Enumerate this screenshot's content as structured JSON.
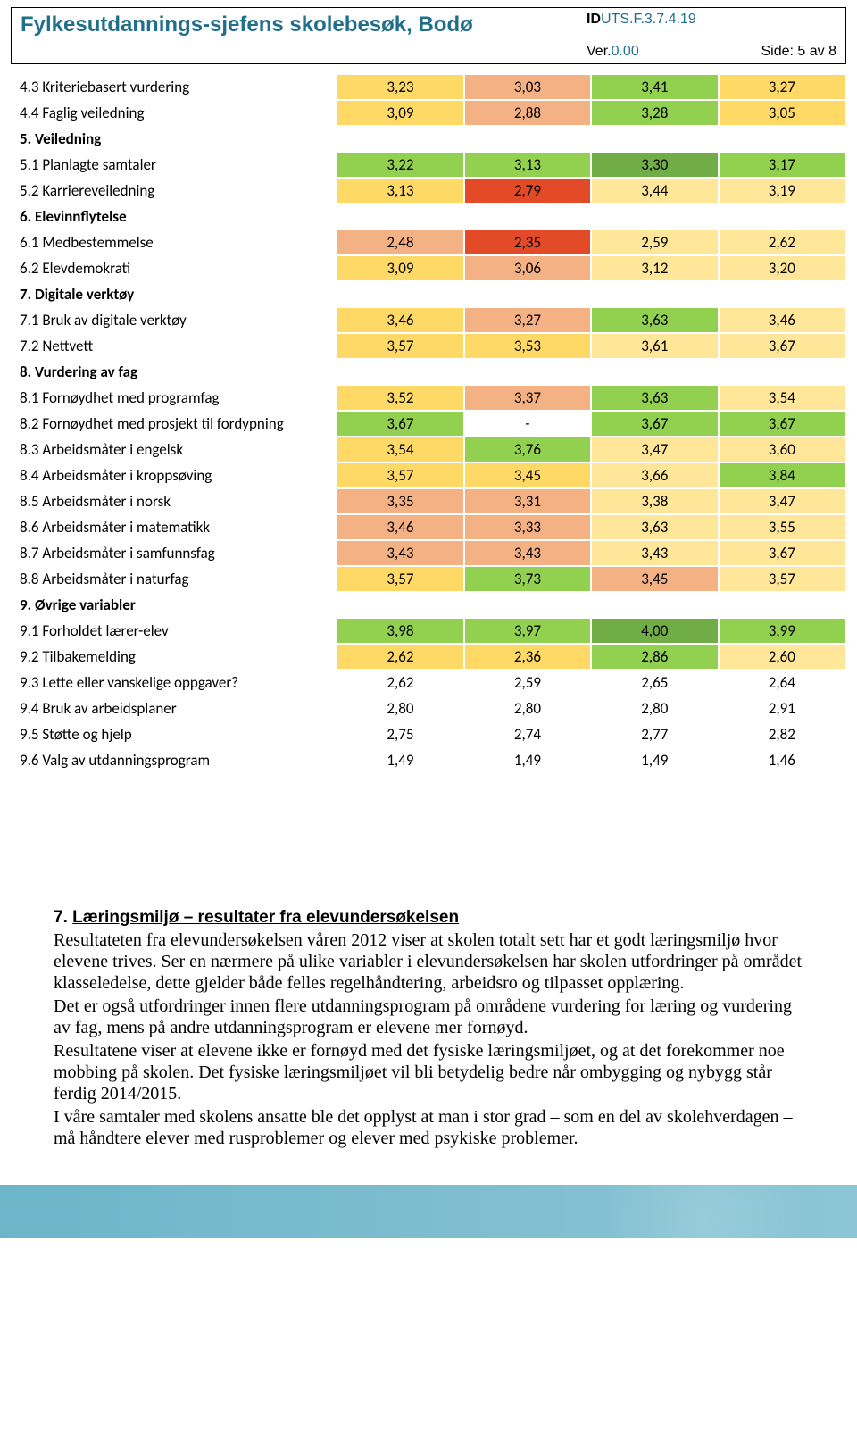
{
  "header": {
    "title": "Fylkesutdannings-sjefens skolebesøk, Bodø",
    "doc_id_prefix": "ID",
    "doc_id_rest": "UTS.F.3.7.4.19",
    "version_label": "Ver.",
    "version_value": "0.00",
    "page_label": "Side: 5 av 8"
  },
  "colors": {
    "green_dark": "#70ad47",
    "green_bright": "#92d050",
    "yellow": "#ffd966",
    "yellow_light": "#ffe699",
    "orange": "#f4b183",
    "orange_dark": "#ed7d31",
    "red": "#e34a27",
    "white": "#ffffff"
  },
  "rows": [
    {
      "label": "4.3 Kriteriebasert vurdering",
      "vals": [
        "3,23",
        "3,03",
        "3,41",
        "3,27"
      ],
      "c": [
        "yellow",
        "orange",
        "green_bright",
        "yellow"
      ]
    },
    {
      "label": "4.4 Faglig veiledning",
      "vals": [
        "3,09",
        "2,88",
        "3,28",
        "3,05"
      ],
      "c": [
        "yellow",
        "orange",
        "green_bright",
        "yellow"
      ]
    },
    {
      "label": "5. Veiledning",
      "section": true
    },
    {
      "label": "5.1 Planlagte samtaler",
      "vals": [
        "3,22",
        "3,13",
        "3,30",
        "3,17"
      ],
      "c": [
        "green_bright",
        "green_bright",
        "green_dark",
        "green_bright"
      ]
    },
    {
      "label": "5.2 Karriereveiledning",
      "vals": [
        "3,13",
        "2,79",
        "3,44",
        "3,19"
      ],
      "c": [
        "yellow",
        "red",
        "yellow_light",
        "yellow_light"
      ]
    },
    {
      "label": "6. Elevinnflytelse",
      "section": true
    },
    {
      "label": "6.1 Medbestemmelse",
      "vals": [
        "2,48",
        "2,35",
        "2,59",
        "2,62"
      ],
      "c": [
        "orange",
        "red",
        "yellow_light",
        "yellow_light"
      ]
    },
    {
      "label": "6.2 Elevdemokrati",
      "vals": [
        "3,09",
        "3,06",
        "3,12",
        "3,20"
      ],
      "c": [
        "yellow",
        "orange",
        "yellow_light",
        "yellow_light"
      ]
    },
    {
      "label": "7. Digitale verktøy",
      "section": true
    },
    {
      "label": "7.1 Bruk av digitale verktøy",
      "vals": [
        "3,46",
        "3,27",
        "3,63",
        "3,46"
      ],
      "c": [
        "yellow",
        "orange",
        "green_bright",
        "yellow_light"
      ]
    },
    {
      "label": "7.2 Nettvett",
      "vals": [
        "3,57",
        "3,53",
        "3,61",
        "3,67"
      ],
      "c": [
        "yellow",
        "yellow",
        "yellow_light",
        "yellow_light"
      ]
    },
    {
      "label": "8. Vurdering av fag",
      "section": true
    },
    {
      "label": "8.1 Fornøydhet med programfag",
      "vals": [
        "3,52",
        "3,37",
        "3,63",
        "3,54"
      ],
      "c": [
        "yellow",
        "orange",
        "green_bright",
        "yellow_light"
      ]
    },
    {
      "label": "8.2 Fornøydhet med prosjekt til fordypning",
      "vals": [
        "3,67",
        "-",
        "3,67",
        "3,67"
      ],
      "c": [
        "green_bright",
        "white",
        "green_bright",
        "green_bright"
      ]
    },
    {
      "label": "8.3 Arbeidsmåter i engelsk",
      "vals": [
        "3,54",
        "3,76",
        "3,47",
        "3,60"
      ],
      "c": [
        "yellow",
        "green_bright",
        "yellow_light",
        "yellow_light"
      ]
    },
    {
      "label": "8.4 Arbeidsmåter i kroppsøving",
      "vals": [
        "3,57",
        "3,45",
        "3,66",
        "3,84"
      ],
      "c": [
        "yellow",
        "yellow",
        "yellow_light",
        "green_bright"
      ]
    },
    {
      "label": "8.5 Arbeidsmåter i norsk",
      "vals": [
        "3,35",
        "3,31",
        "3,38",
        "3,47"
      ],
      "c": [
        "orange",
        "orange",
        "yellow_light",
        "yellow_light"
      ]
    },
    {
      "label": "8.6 Arbeidsmåter i matematikk",
      "vals": [
        "3,46",
        "3,33",
        "3,63",
        "3,55"
      ],
      "c": [
        "orange",
        "orange",
        "yellow_light",
        "yellow_light"
      ]
    },
    {
      "label": "8.7 Arbeidsmåter i samfunnsfag",
      "vals": [
        "3,43",
        "3,43",
        "3,43",
        "3,67"
      ],
      "c": [
        "orange",
        "orange",
        "yellow_light",
        "yellow_light"
      ]
    },
    {
      "label": "8.8 Arbeidsmåter i naturfag",
      "vals": [
        "3,57",
        "3,73",
        "3,45",
        "3,57"
      ],
      "c": [
        "yellow",
        "green_bright",
        "orange",
        "yellow_light"
      ]
    },
    {
      "label": "9. Øvrige variabler",
      "section": true
    },
    {
      "label": "9.1 Forholdet lærer-elev",
      "vals": [
        "3,98",
        "3,97",
        "4,00",
        "3,99"
      ],
      "c": [
        "green_bright",
        "green_bright",
        "green_dark",
        "green_bright"
      ]
    },
    {
      "label": "9.2 Tilbakemelding",
      "vals": [
        "2,62",
        "2,36",
        "2,86",
        "2,60"
      ],
      "c": [
        "yellow",
        "yellow",
        "green_bright",
        "yellow_light"
      ]
    },
    {
      "label": "9.3 Lette eller vanskelige oppgaver?",
      "vals": [
        "2,62",
        "2,59",
        "2,65",
        "2,64"
      ],
      "c": [
        "white",
        "white",
        "white",
        "white"
      ]
    },
    {
      "label": "9.4 Bruk av arbeidsplaner",
      "vals": [
        "2,80",
        "2,80",
        "2,80",
        "2,91"
      ],
      "c": [
        "white",
        "white",
        "white",
        "white"
      ]
    },
    {
      "label": "9.5 Støtte og hjelp",
      "vals": [
        "2,75",
        "2,74",
        "2,77",
        "2,82"
      ],
      "c": [
        "white",
        "white",
        "white",
        "white"
      ]
    },
    {
      "label": "9.6 Valg av utdanningsprogram",
      "vals": [
        "1,49",
        "1,49",
        "1,49",
        "1,46"
      ],
      "c": [
        "white",
        "white",
        "white",
        "white"
      ]
    }
  ],
  "section7": {
    "num": "7.",
    "title": "Læringsmiljø – resultater fra elevundersøkelsen",
    "p1": "Resultateten fra elevundersøkelsen våren 2012 viser at skolen totalt sett har et godt læringsmiljø hvor elevene trives. Ser en nærmere på ulike variabler i elevundersøkelsen har skolen utfordringer på området klasseledelse, dette gjelder både felles regelhåndtering, arbeidsro og tilpasset opplæring.",
    "p2": "Det er også utfordringer innen flere utdanningsprogram på områdene vurdering for læring og vurdering av fag, mens på andre utdanningsprogram er elevene mer fornøyd.",
    "p3": "Resultatene viser at elevene ikke er fornøyd med det fysiske læringsmiljøet, og at det forekommer noe mobbing på skolen. Det fysiske læringsmiljøet vil bli betydelig bedre når ombygging og nybygg står ferdig 2014/2015.",
    "p4": "I våre samtaler med skolens ansatte ble det opplyst at man i stor grad – som en del av skolehverdagen – må håndtere elever med rusproblemer og elever med psykiske problemer."
  }
}
